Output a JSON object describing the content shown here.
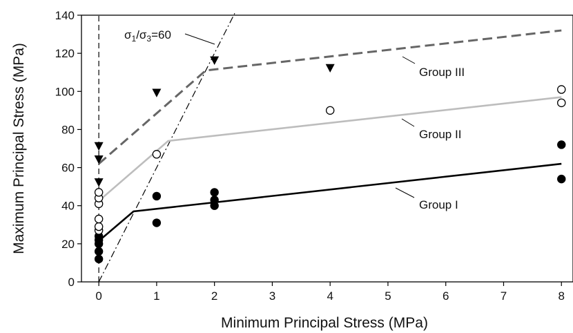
{
  "chart_data": {
    "type": "scatter",
    "xlabel": "Minimum Principal Stress (MPa)",
    "ylabel": "Maximum Principal Stress (MPa)",
    "x_ticks": [
      "0",
      "1",
      "2",
      "3",
      "4",
      "5",
      "6",
      "7",
      "8"
    ],
    "y_ticks": [
      "0",
      "20",
      "40",
      "60",
      "80",
      "100",
      "120",
      "140"
    ],
    "xlim": [
      -0.3,
      8.2
    ],
    "ylim": [
      0,
      140
    ],
    "grid": false,
    "annotations": [
      {
        "text": "σ₁/σ₃=60",
        "target": "ratio-line"
      },
      {
        "text": "Group III",
        "target": "group-iii-fit"
      },
      {
        "text": "Group II",
        "target": "group-ii-fit"
      },
      {
        "text": "Group I",
        "target": "group-i-fit"
      }
    ],
    "series": [
      {
        "group": "Group I",
        "marker": "filled-circle",
        "color": "#000000",
        "points": [
          [
            0,
            12
          ],
          [
            0,
            16
          ],
          [
            0,
            20
          ],
          [
            0,
            22
          ],
          [
            0,
            24
          ],
          [
            1,
            31
          ],
          [
            1,
            45
          ],
          [
            2,
            40
          ],
          [
            2,
            43
          ],
          [
            2,
            47
          ],
          [
            8,
            54
          ],
          [
            8,
            72
          ]
        ],
        "fit": [
          [
            0,
            21.5
          ],
          [
            0.6,
            37
          ],
          [
            8,
            62
          ]
        ],
        "fit_color": "#000000",
        "fit_style": "solid"
      },
      {
        "group": "Group II",
        "marker": "open-circle",
        "color": "#000000",
        "points": [
          [
            0,
            27
          ],
          [
            0,
            29
          ],
          [
            0,
            33
          ],
          [
            0,
            41
          ],
          [
            0,
            44
          ],
          [
            0,
            47
          ],
          [
            1,
            67
          ],
          [
            4,
            90
          ],
          [
            8,
            94
          ],
          [
            8,
            101
          ]
        ],
        "fit": [
          [
            0,
            42.5
          ],
          [
            1.2,
            74
          ],
          [
            8,
            97
          ]
        ],
        "fit_color": "#bdbdbd",
        "fit_style": "solid"
      },
      {
        "group": "Group III",
        "marker": "filled-triangle-down",
        "color": "#000000",
        "points": [
          [
            0,
            52
          ],
          [
            0,
            64
          ],
          [
            0,
            71
          ],
          [
            1,
            99
          ],
          [
            2,
            116
          ],
          [
            4,
            112
          ]
        ],
        "fit": [
          [
            0,
            62
          ],
          [
            1.85,
            111
          ],
          [
            8,
            132
          ]
        ],
        "fit_color": "#666666",
        "fit_style": "dashed"
      }
    ],
    "reference_lines": [
      {
        "name": "ratio-line",
        "points": [
          [
            0,
            0
          ],
          [
            2.35,
            141
          ]
        ],
        "style": "dash-dot"
      },
      {
        "name": "vertical-axis-line",
        "points": [
          [
            0,
            0
          ],
          [
            0,
            140
          ]
        ],
        "style": "dashed"
      }
    ]
  }
}
